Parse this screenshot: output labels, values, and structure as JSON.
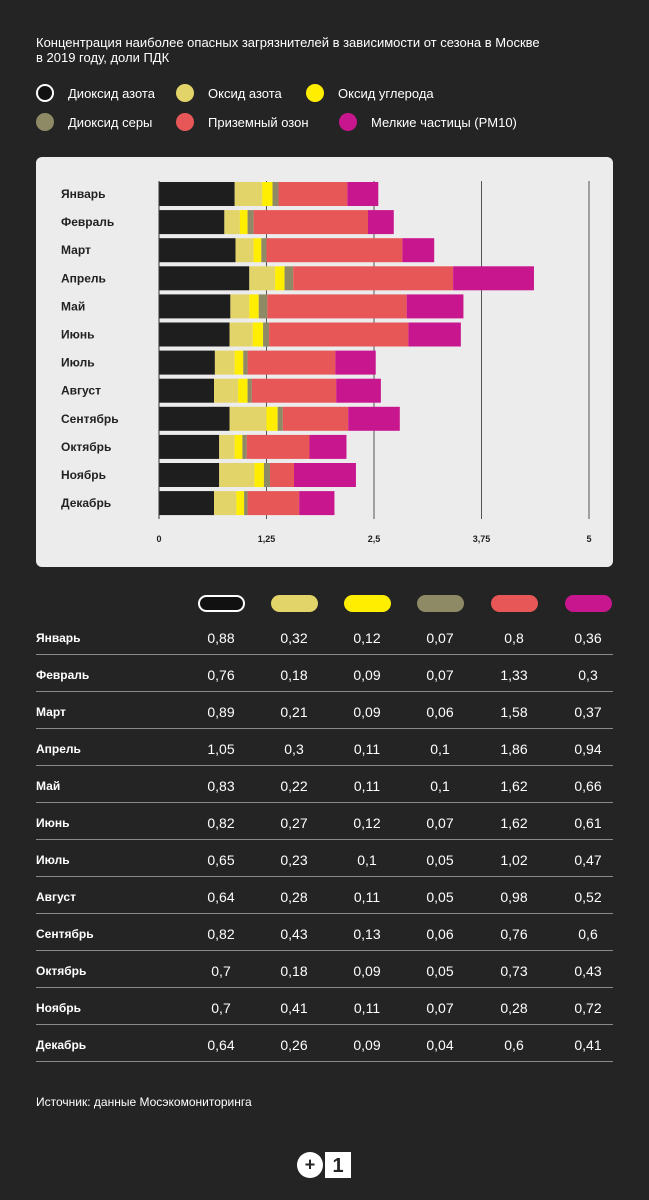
{
  "title_lines": [
    "Концентрация наиболее опасных загрязнителей в зависимости от сезона в Москве",
    "в 2019 году, доли ПДК"
  ],
  "source": "Источник: данные Мосэкомониторинга",
  "logo": {
    "text_left": "+",
    "text_right": "1",
    "name": "0+1"
  },
  "chart_data": {
    "type": "bar",
    "orientation": "horizontal",
    "stacked": true,
    "title": "Концентрация наиболее опасных загрязнителей в зависимости от сезона в Москве в 2019 году, доли ПДК",
    "xlim": [
      0,
      5
    ],
    "xticks": [
      0,
      1.25,
      2.5,
      3.75,
      5
    ],
    "xtick_labels": [
      "0",
      "1,25",
      "2,5",
      "3,75",
      "5"
    ],
    "legend_position": "top",
    "categories": [
      "Январь",
      "Февраль",
      "Март",
      "Апрель",
      "Май",
      "Июнь",
      "Июль",
      "Август",
      "Сентябрь",
      "Октябрь",
      "Ноябрь",
      "Декабрь"
    ],
    "series": [
      {
        "name": "Диоксид азота",
        "color": "#1e1e1e",
        "values": [
          0.88,
          0.76,
          0.89,
          1.05,
          0.83,
          0.82,
          0.65,
          0.64,
          0.82,
          0.7,
          0.7,
          0.64
        ],
        "labels": [
          "0,88",
          "0,76",
          "0,89",
          "1,05",
          "0,83",
          "0,82",
          "0,65",
          "0,64",
          "0,82",
          "0,7",
          "0,7",
          "0,64"
        ]
      },
      {
        "name": "Оксид азота",
        "color": "#e3d46a",
        "values": [
          0.32,
          0.18,
          0.21,
          0.3,
          0.22,
          0.27,
          0.23,
          0.28,
          0.43,
          0.18,
          0.41,
          0.26
        ],
        "labels": [
          "0,32",
          "0,18",
          "0,21",
          "0,3",
          "0,22",
          "0,27",
          "0,23",
          "0,28",
          "0,43",
          "0,18",
          "0,41",
          "0,26"
        ]
      },
      {
        "name": "Оксид углерода",
        "color": "#ffee00",
        "values": [
          0.12,
          0.09,
          0.09,
          0.11,
          0.11,
          0.12,
          0.1,
          0.11,
          0.13,
          0.09,
          0.11,
          0.09
        ],
        "labels": [
          "0,12",
          "0,09",
          "0,09",
          "0,11",
          "0,11",
          "0,12",
          "0,1",
          "0,11",
          "0,13",
          "0,09",
          "0,11",
          "0,09"
        ]
      },
      {
        "name": "Диоксид серы",
        "color": "#8e8a65",
        "values": [
          0.07,
          0.07,
          0.06,
          0.1,
          0.1,
          0.07,
          0.05,
          0.05,
          0.06,
          0.05,
          0.07,
          0.04
        ],
        "labels": [
          "0,07",
          "0,07",
          "0,06",
          "0,1",
          "0,1",
          "0,07",
          "0,05",
          "0,05",
          "0,06",
          "0,05",
          "0,07",
          "0,04"
        ]
      },
      {
        "name": "Приземный озон",
        "color": "#e85757",
        "values": [
          0.8,
          1.33,
          1.58,
          1.86,
          1.62,
          1.62,
          1.02,
          0.98,
          0.76,
          0.73,
          0.28,
          0.6
        ],
        "labels": [
          "0,8",
          "1,33",
          "1,58",
          "1,86",
          "1,62",
          "1,62",
          "1,02",
          "0,98",
          "0,76",
          "0,73",
          "0,28",
          "0,6"
        ]
      },
      {
        "name": "Мелкие частицы (PM10)",
        "color": "#c8168f",
        "values": [
          0.36,
          0.3,
          0.37,
          0.94,
          0.66,
          0.61,
          0.47,
          0.52,
          0.6,
          0.43,
          0.72,
          0.41
        ],
        "labels": [
          "0,36",
          "0,3",
          "0,37",
          "0,94",
          "0,66",
          "0,61",
          "0,47",
          "0,52",
          "0,6",
          "0,43",
          "0,72",
          "0,41"
        ]
      }
    ]
  }
}
